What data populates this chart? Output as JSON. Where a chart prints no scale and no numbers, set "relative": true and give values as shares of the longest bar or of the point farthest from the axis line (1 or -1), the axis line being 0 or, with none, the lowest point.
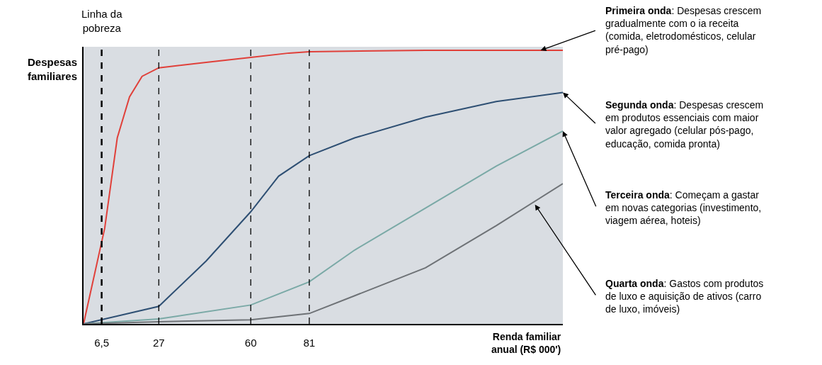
{
  "chart_data": {
    "type": "line",
    "relative": true,
    "ylabel": "Despesas\nfamiliares",
    "xlabel": "Renda familiar\nanual (R$ 000')",
    "xlim": [
      0,
      172
    ],
    "xticks": [
      {
        "value": 6.5,
        "label": "6,5"
      },
      27,
      60,
      81
    ],
    "grid": false,
    "marker": "none",
    "line_style": "solid",
    "series": [
      {
        "color": "#e0403a",
        "x": [
          0,
          7.6,
          12.1,
          16.5,
          21,
          27,
          44,
          60,
          73.7,
          81,
          122.7,
          172
        ],
        "values": [
          0,
          0.35,
          0.68,
          0.83,
          0.905,
          0.936,
          0.956,
          0.974,
          0.99,
          0.995,
          1,
          1
        ]
      },
      {
        "color": "#2e4f73",
        "x": [
          0,
          27,
          44,
          60,
          70,
          81,
          97.3,
          122.7,
          148.1,
          172
        ],
        "values": [
          0,
          0.064,
          0.23,
          0.41,
          0.54,
          0.615,
          0.68,
          0.756,
          0.813,
          0.846
        ]
      },
      {
        "color": "#7aa9a6",
        "x": [
          0,
          27,
          60,
          81,
          97.3,
          122.7,
          148.1,
          172
        ],
        "values": [
          0,
          0.018,
          0.069,
          0.154,
          0.27,
          0.423,
          0.577,
          0.705
        ]
      },
      {
        "color": "#6e7276",
        "x": [
          0,
          27,
          60,
          81,
          97.3,
          122.7,
          148.1,
          172
        ],
        "values": [
          0,
          0.008,
          0.015,
          0.038,
          0.103,
          0.205,
          0.359,
          0.513
        ]
      }
    ],
    "ref_lines": [
      {
        "axis": "x",
        "value": 6.5,
        "label": "Linha da\npobreza",
        "color": "#000000",
        "line_style": "dashed"
      },
      {
        "axis": "x",
        "value": 27,
        "color": "#000000",
        "line_style": "dashed"
      },
      {
        "axis": "x",
        "value": 60,
        "color": "#000000",
        "line_style": "dashed"
      },
      {
        "axis": "x",
        "value": 81,
        "color": "#000000",
        "line_style": "dashed"
      }
    ],
    "annotations": [
      {
        "text": "Primeira onda: Despesas crescem\ngradualmente com o ia receita\n(comida, eletrodomésticos, celular\npré-pago)",
        "x": 164,
        "y": 1
      },
      {
        "text": "Segunda onda: Despesas crescem\nem produtos essenciais com maior\nvalor agregado (celular pós-pago,\neducação, comida pronta)",
        "x": 172,
        "y": 0.846
      },
      {
        "text": "Terceira onda: Começam a gastar\nem novas categorias (investimento,\nviagem aérea, hoteis)",
        "x": 172,
        "y": 0.705
      },
      {
        "text": "Quarta onda: Gastos com produtos\nde luxo e aquisição de ativos (carro\nde luxo, imóveis)",
        "x": 162,
        "y": 0.436
      }
    ]
  }
}
